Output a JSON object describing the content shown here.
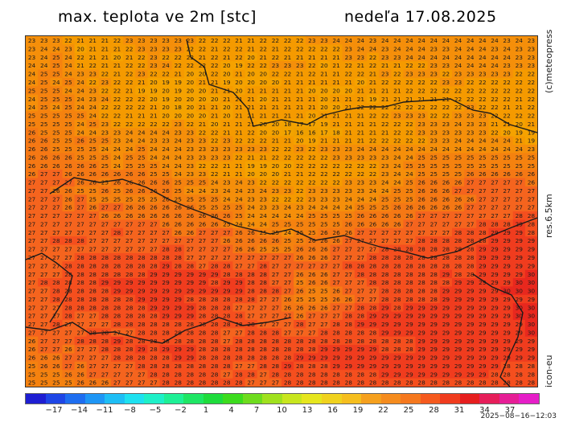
{
  "title_left": "max. teplota ve 2m [stc]",
  "title_right": "nedeľa 17.08.2025",
  "brand_label": "(c)meteopress",
  "resolution_label": "res.6.5km",
  "model_label": "icon-eu",
  "timestamp": "2025−08−16−12:03",
  "colorbar": {
    "colors": [
      "#1e1ed2",
      "#1e46e6",
      "#1e6ef0",
      "#1e96f5",
      "#1ebef5",
      "#1ee1f0",
      "#1ef0c8",
      "#1ef096",
      "#1ee664",
      "#1edc3c",
      "#3cdc1e",
      "#6edc1e",
      "#a0e11e",
      "#c8e61e",
      "#e6e61e",
      "#f0d21e",
      "#f5be1e",
      "#f5a01e",
      "#f58c1e",
      "#f5781e",
      "#f55a1e",
      "#f03c1e",
      "#e61e1e",
      "#e61e5a",
      "#e61e96",
      "#e61ec8"
    ],
    "tick_labels": [
      "−17",
      "−14",
      "−11",
      "−8",
      "−5",
      "−2",
      "1",
      "4",
      "7",
      "10",
      "13",
      "16",
      "19",
      "22",
      "25",
      "28",
      "31",
      "34",
      "37"
    ]
  },
  "map": {
    "rows": [
      "23 23 23 22 21 21 21 22 23 23 23 23 23 23 22 22 22 21 21 22 22 22 22 23 23 24 24 24 23 24 24 24 24 24 24 24 24 24 24 23 24 23",
      "23 24 24 23 20 21 21 21 22 23 23 23 23 22 22 21 22 22 21 22 21 22 22 22 22 22 23 24 24 23 24 24 24 23 23 24 24 24 23 24 23 23",
      "23 24 25 24 22 21 21 20 21 22 23 22 22 22 21 22 21 22 20 21 22 21 21 21 21 21 23 23 22 23 23 24 24 24 24 24 24 24 24 24 23 23",
      "24 24 25 24 21 22 21 21 22 22 23 24 22 22 22 22 20 19 22 22 23 23 23 22 20 21 22 21 22 21 21 22 22 23 23 24 24 24 24 23 23 23",
      "24 25 25 24 23 23 22 21 22 23 22 22 21 20 20 22 20 21 20 20 22 22 21 22 21 21 22 22 21 23 22 23 23 23 22 23 23 23 23 23 22 22",
      "24 25 24 25 24 22 23 22 22 21 20 19 19 20 21 21 19 20 20 20 20 21 21 21 21 21 21 20 21 22 22 22 22 22 23 23 22 22 22 22 22 22",
      "25 25 25 24 24 23 22 22 21 19 19 20 19 20 20 21 21 20 21 21 21 21 21 20 20 20 20 21 21 21 21 22 22 22 22 22 22 22 22 22 22 22",
      "24 25 25 25 24 23 24 22 22 22 20 19 20 20 20 20 21 21 21 20 21 21 21 21 20 21 21 21 19 21 21 21 21 21 21 22 22 22 22 22 21 22",
      "24 25 24 25 24 24 22 22 22 22 21 20 18 20 21 21 20 21 21 21 21 21 21 21 20 20 21 22 22 22 22 22 22 22 22 22 23 22 22 21 21 22",
      "25 25 25 25 25 24 22 22 21 21 21 20 20 20 20 21 20 21 21 21 21 21 21 20 21 21 21 21 22 22 23 23 23 22 22 23 23 23 22 22 22 22",
      "25 25 25 25 24 25 23 22 22 22 22 22 23 22 21 20 21 21 21 20 20 18 17 17 19 21 21 21 21 22 22 22 23 23 23 24 23 23 21 21 20 21",
      "26 25 25 25 24 24 23 23 24 24 24 24 23 23 22 22 21 21 22 20 20 17 16 16 17 18 21 21 21 21 22 22 23 23 23 23 23 23 22 20 19 19",
      "26 26 25 25 26 25 25 23 24 24 23 23 24 23 23 22 23 22 22 22 21 21 20 19 21 21 21 21 22 22 22 22 22 23 23 24 24 24 24 24 21 19",
      "26 26 25 25 25 25 24 24 24 25 24 24 24 23 23 23 23 23 23 23 22 22 23 22 23 23 23 24 24 24 24 24 24 24 24 24 24 24 24 24 24 23",
      "26 26 26 26 25 25 25 24 25 25 24 24 24 23 23 23 23 22 21 21 22 22 22 22 22 23 23 23 23 23 24 24 25 25 25 25 25 25 25 25 25 25",
      "26 26 26 26 26 26 25 24 25 25 25 24 24 23 22 22 21 21 19 19 20 20 22 22 22 22 22 22 22 23 24 25 25 25 25 25 25 25 25 25 25 25",
      "26 27 27 26 26 26 26 26 26 26 25 25 24 23 23 22 21 21 20 20 20 21 21 22 22 22 22 22 22 23 24 24 25 25 25 25 26 26 26 26 26 26",
      "27 27 27 27 26 26 25 26 26 26 26 26 25 25 25 24 23 24 23 22 22 22 22 22 22 22 23 23 23 24 24 25 26 26 26 26 27 27 27 27 27 26",
      "27 27 26 26 25 25 26 25 26 26 26 26 25 24 24 23 24 24 23 24 23 23 22 23 23 23 23 23 24 24 25 25 26 26 26 27 27 27 27 27 27 27",
      "27 27 27 26 27 25 25 25 25 25 25 26 25 25 25 25 24 24 23 23 22 22 22 23 23 23 24 24 24 25 25 25 26 26 26 26 26 27 27 27 27 27",
      "27 27 27 26 27 26 27 27 26 26 26 26 26 26 25 25 25 25 24 23 23 24 23 24 24 24 24 25 25 25 26 26 26 26 26 26 27 27 27 27 27 27",
      "27 27 27 27 27 27 26 26 26 26 26 26 26 26 26 26 26 25 24 24 24 24 24 25 25 25 25 26 26 26 26 26 27 27 27 27 27 27 27 27 28 28",
      "27 27 27 27 27 27 27 27 27 27 27 26 26 26 26 26 25 24 24 24 25 25 25 25 25 25 26 26 26 26 26 27 27 27 27 27 27 28 28 28 29 28",
      "27 27 27 27 27 27 27 28 27 27 27 27 26 26 27 27 27 26 26 25 25 24 25 25 26 26 26 27 27 27 27 27 27 27 27 28 28 28 29 29 29 28",
      "27 27 28 28 28 27 27 27 27 27 27 27 27 27 27 27 26 26 26 26 26 25 25 26 26 26 27 27 27 27 27 27 28 28 28 28 28 28 29 29 29 29",
      "27 27 27 27 27 27 27 27 27 27 27 28 28 27 27 27 27 26 26 25 25 25 26 26 26 27 27 27 27 28 28 28 28 28 28 28 28 29 29 29 29 29",
      "27 27 27 27 28 28 28 28 28 28 28 28 28 27 27 27 27 27 27 27 27 27 26 26 26 27 27 27 28 28 28 28 28 28 28 28 28 29 29 29 29 29",
      "27 27 27 28 28 28 28 28 28 28 28 29 28 28 27 28 28 27 27 28 27 27 27 27 27 27 28 28 28 28 28 28 28 28 28 28 28 29 29 29 29 29",
      "27 27 27 28 28 28 28 28 28 28 29 29 29 29 29 29 28 28 28 28 27 27 26 26 26 27 27 28 28 28 28 28 28 28 29 28 28 29 29 29 29 30",
      "27 28 28 28 28 28 29 29 29 29 29 29 29 29 29 28 29 29 28 28 27 27 25 26 26 27 27 27 28 28 28 28 28 28 28 29 29 29 29 29 30 30",
      "27 27 28 28 28 28 28 29 29 29 29 29 29 29 29 29 29 29 28 28 28 27 26 25 25 26 27 27 27 28 28 28 28 28 29 29 29 29 29 30 30 30",
      "27 27 28 28 28 28 28 28 28 29 29 29 29 28 28 28 28 28 28 27 27 26 25 25 25 26 26 27 27 28 28 28 28 28 29 29 29 29 29 29 29 29",
      "27 27 27 28 28 28 28 28 28 28 29 29 29 29 28 28 28 27 27 27 27 26 26 26 26 27 27 28 28 29 28 29 29 29 29 29 29 29 29 29 30 30",
      "27 27 27 28 27 27 28 28 28 28 28 29 29 29 28 28 28 28 27 27 27 27 26 27 27 27 28 28 29 29 29 29 29 29 29 29 29 29 29 29 30 30",
      "27 27 28 27 27 27 27 28 28 28 28 28 28 28 28 28 28 28 28 27 27 27 28 27 27 28 28 29 29 29 29 29 29 29 29 29 29 29 29 29 29 30",
      "27 27 27 27 27 28 28 27 27 28 28 28 28 28 28 28 27 27 28 28 28 27 27 27 28 28 28 28 28 29 29 29 29 29 29 29 29 29 29 29 29 30",
      "26 27 27 27 28 28 28 29 28 28 28 28 28 28 28 28 27 28 28 28 28 28 28 28 28 28 28 28 28 28 28 28 29 29 29 29 29 29 29 29 29 29",
      "26 27 27 26 27 27 28 28 28 29 28 29 29 29 28 28 28 28 28 28 28 28 28 28 29 29 29 29 29 28 28 28 29 29 29 29 29 29 29 29 29 29",
      "26 26 26 27 27 27 27 28 28 28 28 28 29 29 28 28 28 28 28 28 28 28 29 29 29 29 29 29 29 29 29 29 29 29 29 29 29 29 29 29 29 29",
      "25 26 26 27 26 27 27 27 27 28 28 28 28 28 28 28 28 27 27 28 28 29 28 28 28 29 29 29 29 29 29 29 29 29 29 29 29 29 29 28 28 28",
      "25 25 25 26 26 27 27 27 27 27 28 28 28 28 28 28 27 28 28 27 28 28 28 28 28 28 28 28 28 29 29 29 29 29 29 29 29 29 28 28 28 28",
      "25 25 25 25 26 26 26 27 27 27 27 28 28 28 28 28 28 28 27 27 27 28 28 28 28 28 28 28 28 28 28 28 28 28 28 28 28 28 28 28 28 28"
    ]
  }
}
